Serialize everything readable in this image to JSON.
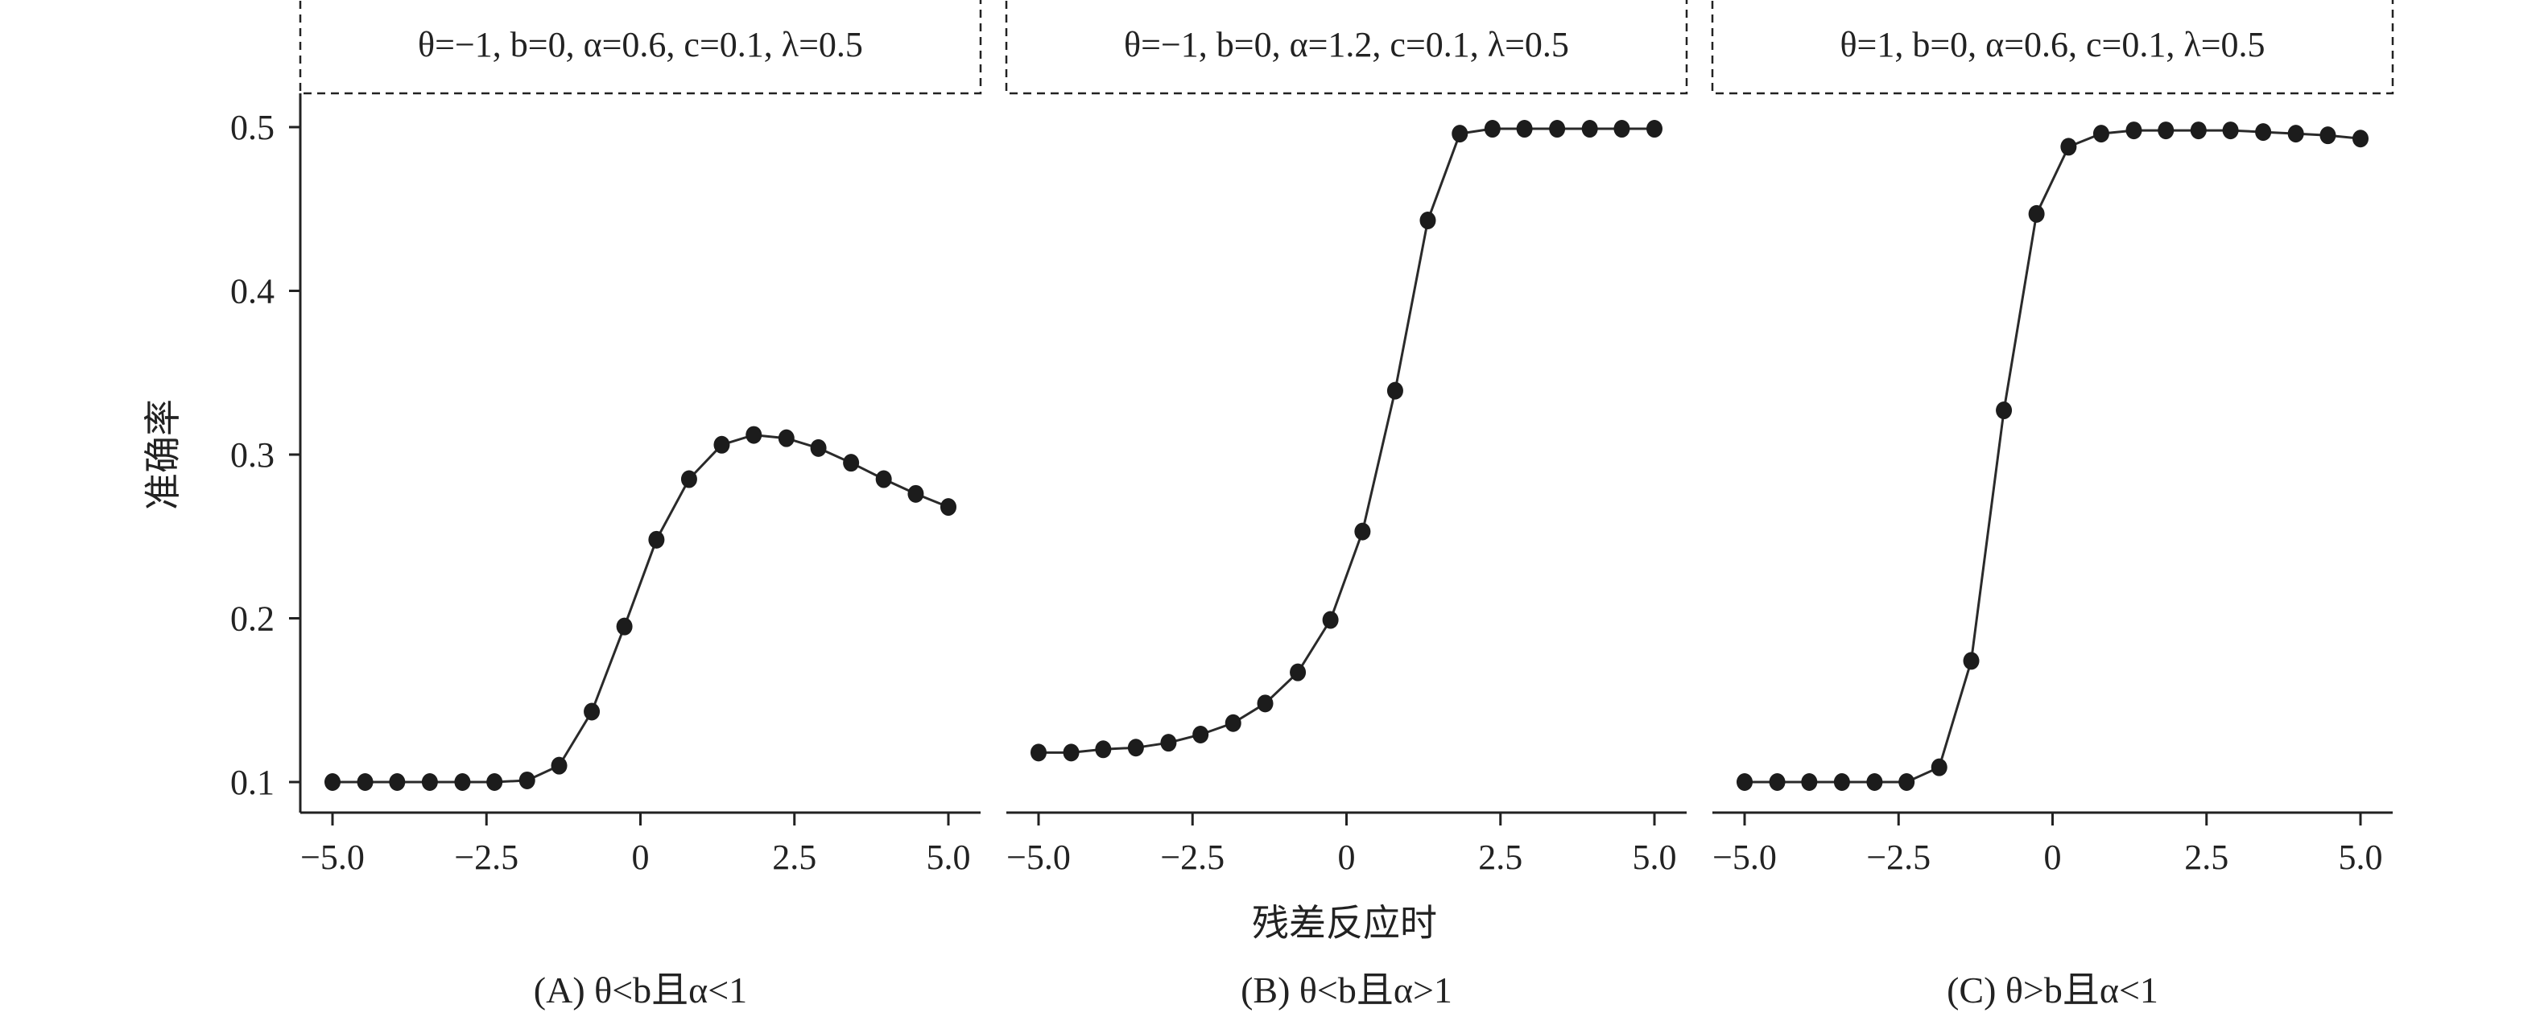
{
  "figure": {
    "ylabel": "准确率",
    "xlabel": "残差反应时"
  },
  "chart_data": [
    {
      "type": "line",
      "panel": "A",
      "params_label": "θ=−1, b=0, α=0.6, c=0.1, λ=0.5",
      "caption": "(A) θ<b且α<1",
      "xlim": [
        -5.0,
        5.0
      ],
      "ylim": [
        0.1,
        0.5
      ],
      "xticks": [
        "−5.0",
        "−2.5",
        "0",
        "2.5",
        "5.0"
      ],
      "yticks": [
        "0.1",
        "0.2",
        "0.3",
        "0.4",
        "0.5"
      ],
      "series": [
        {
          "x": [
            -5.0,
            -4.47,
            -3.95,
            -3.42,
            -2.89,
            -2.37,
            -1.84,
            -1.32,
            -0.79,
            -0.26,
            0.26,
            0.79,
            1.32,
            1.84,
            2.37,
            2.89,
            3.42,
            3.95,
            4.47,
            5.0
          ],
          "values": [
            0.1,
            0.1,
            0.1,
            0.1,
            0.1,
            0.1,
            0.101,
            0.11,
            0.143,
            0.195,
            0.248,
            0.285,
            0.306,
            0.312,
            0.31,
            0.304,
            0.295,
            0.285,
            0.276,
            0.268
          ]
        }
      ]
    },
    {
      "type": "line",
      "panel": "B",
      "params_label": "θ=−1, b=0, α=1.2, c=0.1, λ=0.5",
      "caption": "(B) θ<b且α>1",
      "xlim": [
        -5.0,
        5.0
      ],
      "ylim": [
        0.1,
        0.5
      ],
      "xticks": [
        "−5.0",
        "−2.5",
        "0",
        "2.5",
        "5.0"
      ],
      "yticks": [
        "0.1",
        "0.2",
        "0.3",
        "0.4",
        "0.5"
      ],
      "series": [
        {
          "x": [
            -5.0,
            -4.47,
            -3.95,
            -3.42,
            -2.89,
            -2.37,
            -1.84,
            -1.32,
            -0.79,
            -0.26,
            0.26,
            0.79,
            1.32,
            1.84,
            2.37,
            2.89,
            3.42,
            3.95,
            4.47,
            5.0
          ],
          "values": [
            0.118,
            0.118,
            0.12,
            0.121,
            0.124,
            0.129,
            0.136,
            0.148,
            0.167,
            0.199,
            0.253,
            0.339,
            0.443,
            0.496,
            0.499,
            0.499,
            0.499,
            0.499,
            0.499,
            0.499
          ]
        }
      ]
    },
    {
      "type": "line",
      "panel": "C",
      "params_label": "θ=1, b=0, α=0.6, c=0.1, λ=0.5",
      "caption": "(C) θ>b且α<1",
      "xlim": [
        -5.0,
        5.0
      ],
      "ylim": [
        0.1,
        0.5
      ],
      "xticks": [
        "−5.0",
        "−2.5",
        "0",
        "2.5",
        "5.0"
      ],
      "yticks": [
        "0.1",
        "0.2",
        "0.3",
        "0.4",
        "0.5"
      ],
      "series": [
        {
          "x": [
            -5.0,
            -4.47,
            -3.95,
            -3.42,
            -2.89,
            -2.37,
            -1.84,
            -1.32,
            -0.79,
            -0.26,
            0.26,
            0.79,
            1.32,
            1.84,
            2.37,
            2.89,
            3.42,
            3.95,
            4.47,
            5.0
          ],
          "values": [
            0.1,
            0.1,
            0.1,
            0.1,
            0.1,
            0.1,
            0.109,
            0.174,
            0.327,
            0.447,
            0.488,
            0.496,
            0.498,
            0.498,
            0.498,
            0.498,
            0.497,
            0.496,
            0.495,
            0.493
          ]
        }
      ]
    }
  ]
}
